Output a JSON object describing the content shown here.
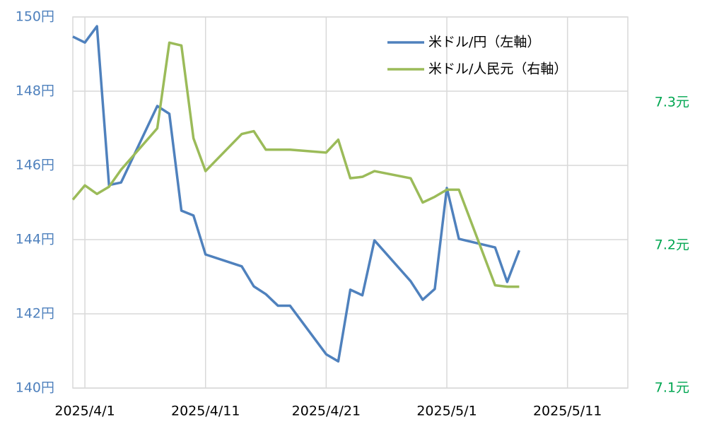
{
  "chart_data": {
    "type": "line",
    "x": [
      "2025/3/31",
      "2025/4/1",
      "2025/4/2",
      "2025/4/3",
      "2025/4/4",
      "2025/4/7",
      "2025/4/8",
      "2025/4/9",
      "2025/4/10",
      "2025/4/11",
      "2025/4/14",
      "2025/4/15",
      "2025/4/16",
      "2025/4/17",
      "2025/4/18",
      "2025/4/21",
      "2025/4/22",
      "2025/4/23",
      "2025/4/24",
      "2025/4/25",
      "2025/4/28",
      "2025/4/29",
      "2025/4/30",
      "2025/5/1",
      "2025/5/2",
      "2025/5/5",
      "2025/5/6",
      "2025/5/7"
    ],
    "series": [
      {
        "name": "米ドル/円（左軸）",
        "color": "#4f81bd",
        "values": [
          149.47,
          149.31,
          149.75,
          145.47,
          145.54,
          147.6,
          147.39,
          144.78,
          144.65,
          143.6,
          143.28,
          142.74,
          142.53,
          142.22,
          142.22,
          140.91,
          140.72,
          142.65,
          142.5,
          143.98,
          142.88,
          142.38,
          142.67,
          145.39,
          144.02,
          143.79,
          142.86,
          143.71
        ]
      },
      {
        "name": "米ドル/人民元（右軸）",
        "color": "#9bbb59",
        "axis": "y2",
        "values": [
          7.232,
          7.242,
          7.236,
          7.241,
          7.253,
          7.282,
          7.342,
          7.34,
          7.275,
          7.252,
          7.278,
          7.28,
          7.267,
          7.267,
          7.267,
          7.265,
          7.274,
          7.247,
          7.248,
          7.252,
          7.247,
          7.23,
          7.234,
          7.239,
          7.239,
          7.172,
          7.171,
          7.171
        ]
      }
    ],
    "xlim": [
      "2025/3/31",
      "2025/5/16"
    ],
    "xticks": [
      "2025/4/1",
      "2025/4/11",
      "2025/4/21",
      "2025/5/1",
      "2025/5/11"
    ],
    "ylim": [
      140,
      150
    ],
    "yticks": [
      {
        "value": 140,
        "label": "140円"
      },
      {
        "value": 142,
        "label": "142円"
      },
      {
        "value": 144,
        "label": "144円"
      },
      {
        "value": 146,
        "label": "146円"
      },
      {
        "value": 148,
        "label": "148円"
      },
      {
        "value": 150,
        "label": "150円"
      }
    ],
    "y2lim": [
      7.1,
      7.36
    ],
    "y2ticks": [
      {
        "value": 7.1,
        "label": "7.1元"
      },
      {
        "value": 7.2,
        "label": "7.2元"
      },
      {
        "value": 7.3,
        "label": "7.3元"
      }
    ],
    "ytick_color": "#4f81bd",
    "y2tick_color": "#00a651",
    "grid": true,
    "legend": "top-right"
  }
}
